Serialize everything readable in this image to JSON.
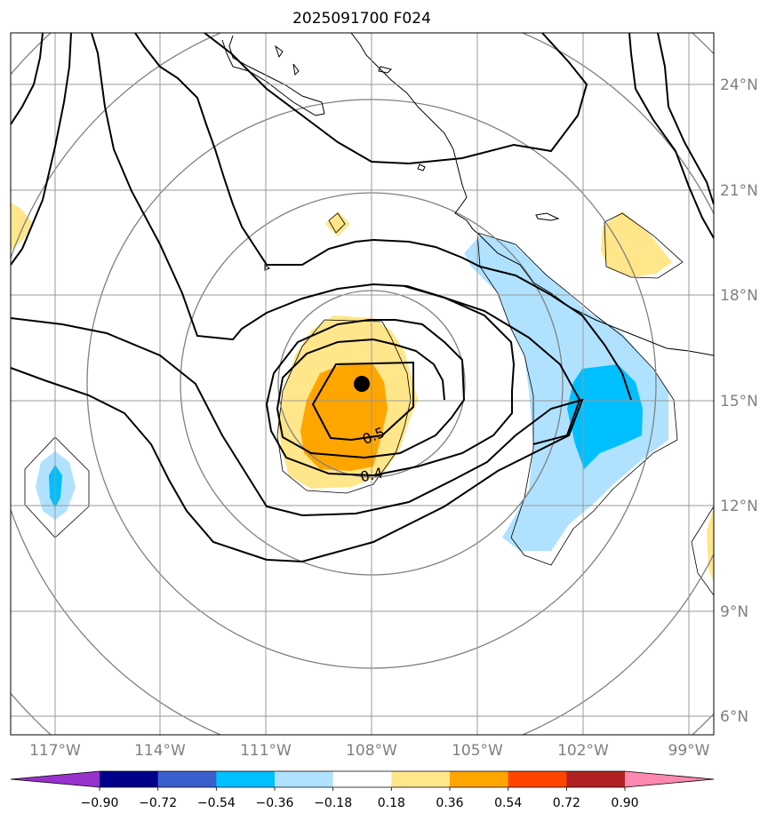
{
  "title": "2025091700 F024",
  "map": {
    "lat_labels": [
      "24°N",
      "21°N",
      "18°N",
      "15°N",
      "12°N",
      "9°N",
      "6°N"
    ],
    "lon_labels": [
      "117°W",
      "114°W",
      "111°W",
      "108°W",
      "105°W",
      "102°W",
      "99°W"
    ],
    "contour_labels": [
      "0.5",
      "0.4"
    ],
    "storm_center": {
      "lat": 15.4,
      "lon": -108.3
    }
  },
  "colorbar": {
    "levels": [
      "−0.90",
      "−0.72",
      "−0.54",
      "−0.36",
      "−0.18",
      "0.18",
      "0.36",
      "0.54",
      "0.72",
      "0.90"
    ],
    "colors": [
      "#9932cc",
      "#00008b",
      "#3a5fcd",
      "#00bfff",
      "#b0e2ff",
      "#ffffff",
      "#ffe68a",
      "#ffa500",
      "#ff4500",
      "#b22222",
      "#ff88b0"
    ]
  }
}
